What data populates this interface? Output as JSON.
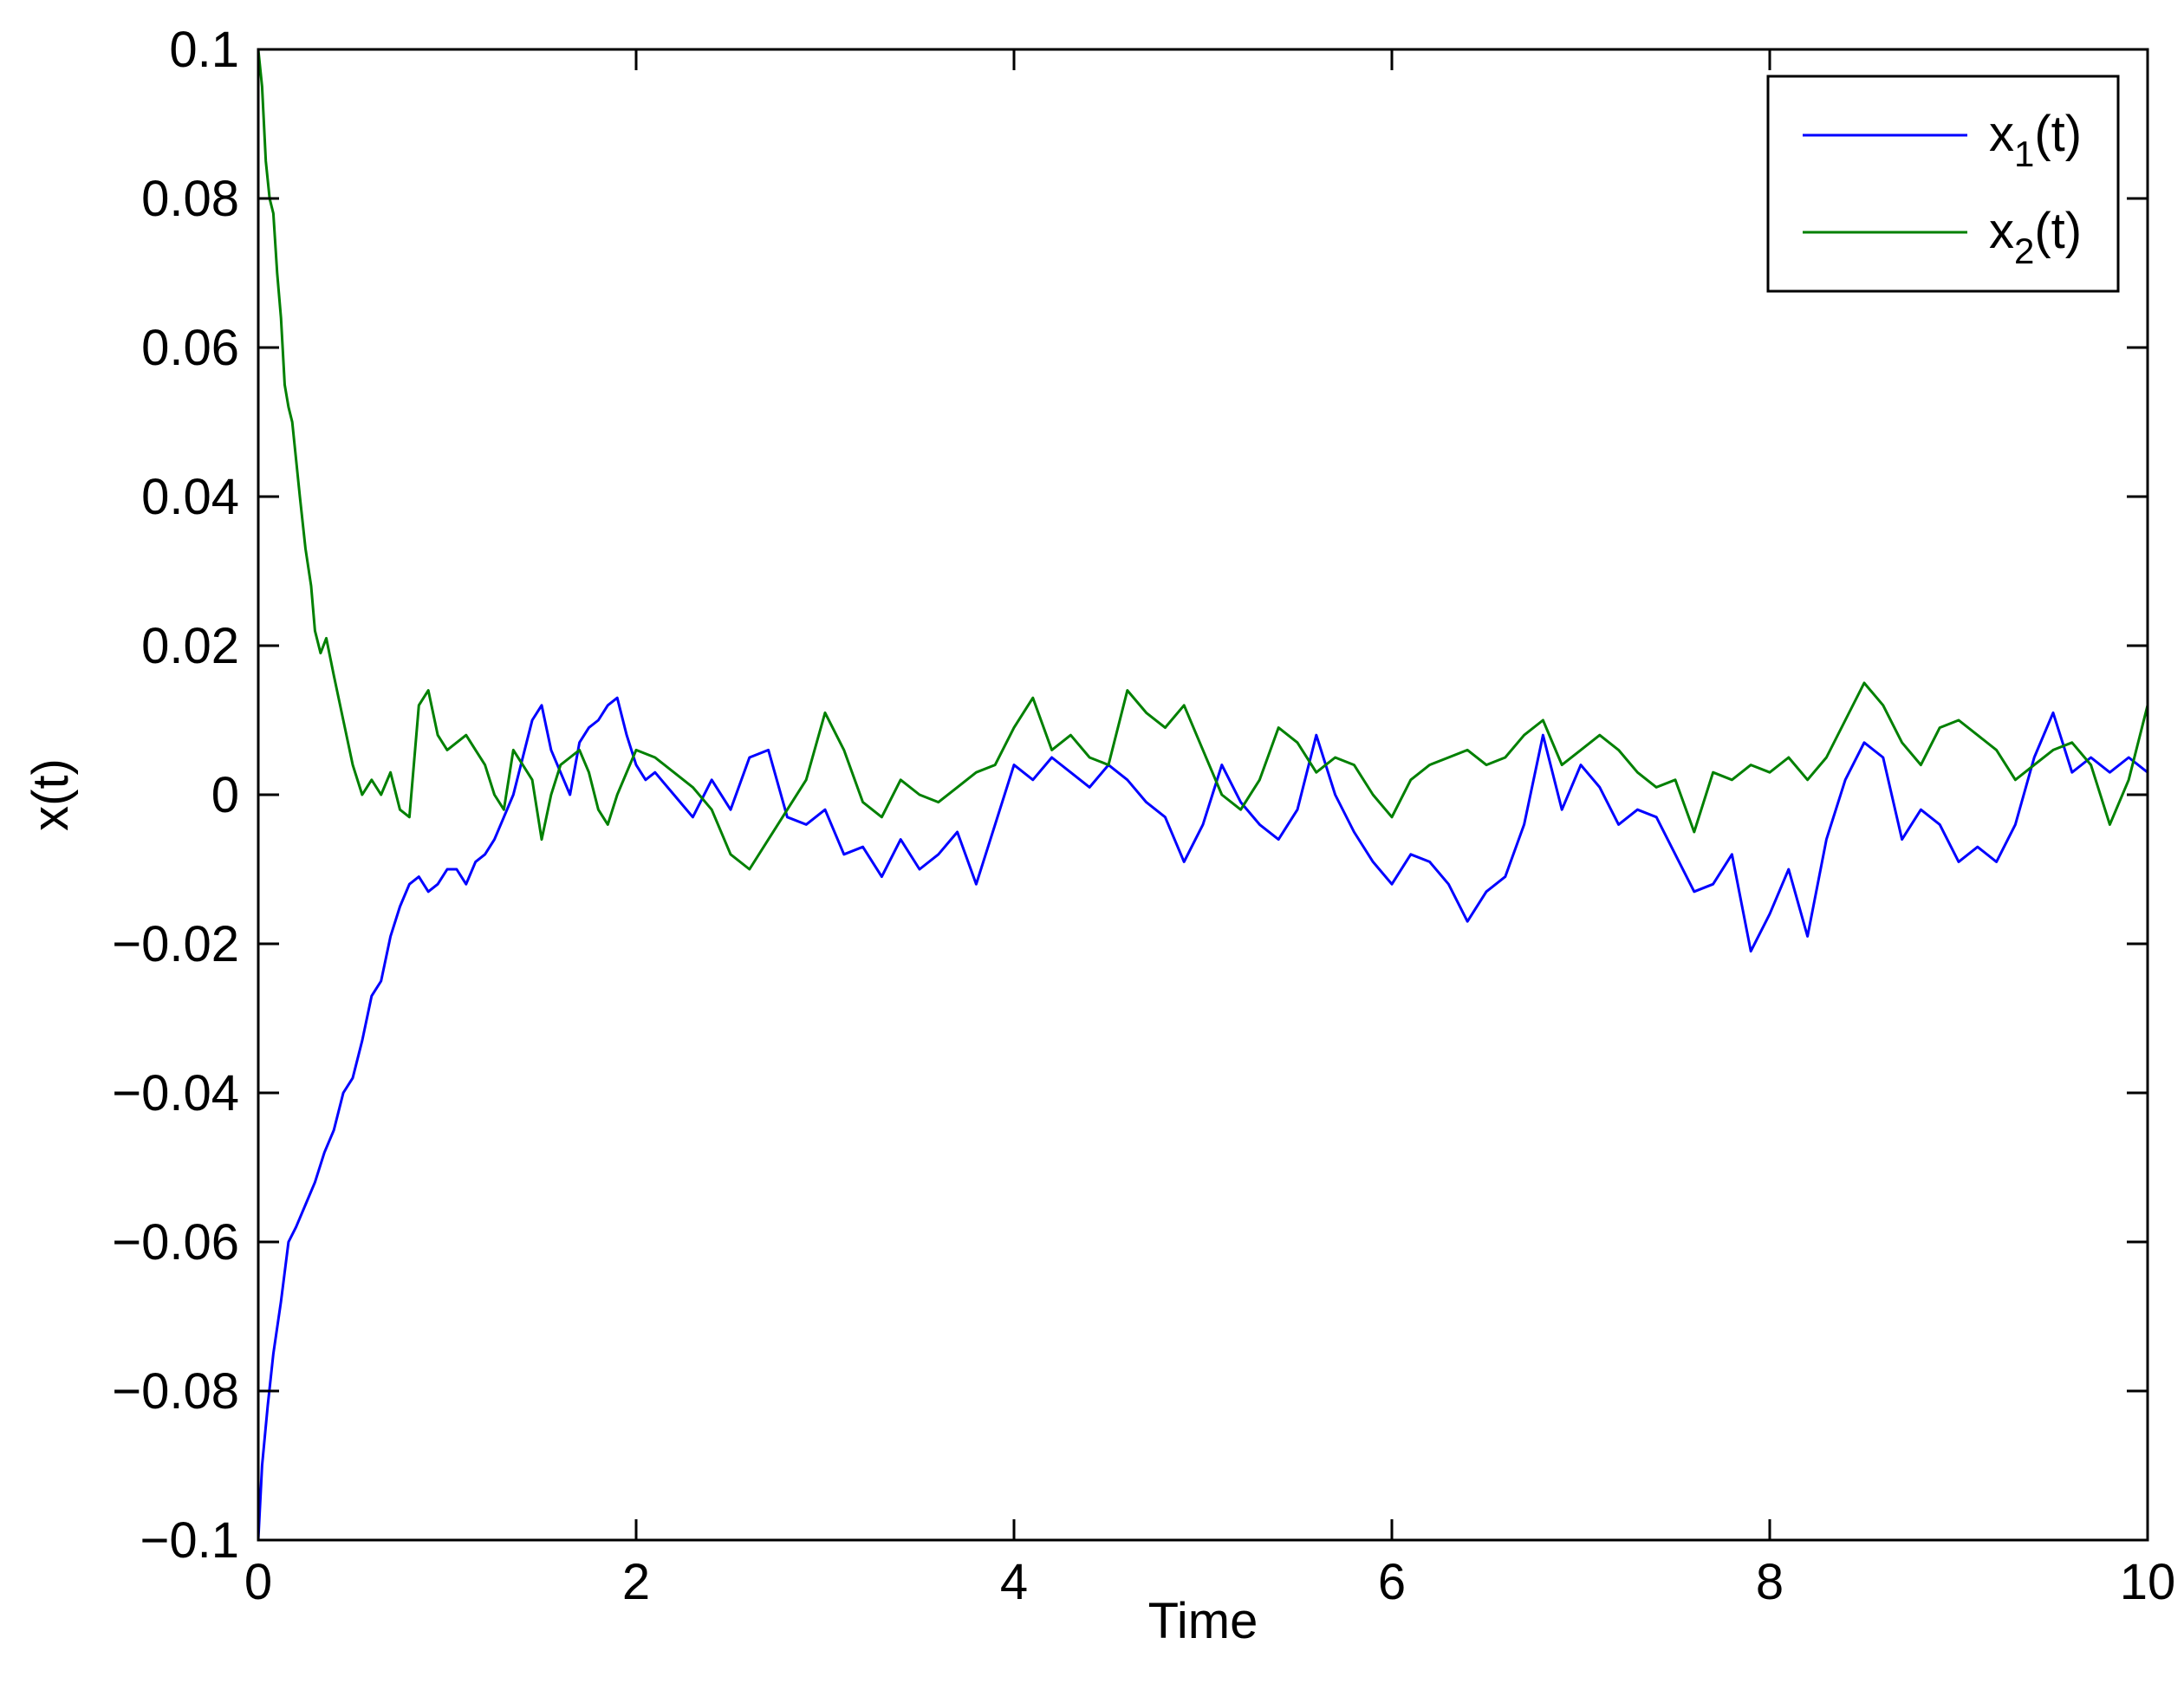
{
  "chart_data": {
    "type": "line",
    "xlabel": "Time",
    "ylabel": "x(t)",
    "xlim": [
      0,
      10
    ],
    "ylim": [
      -0.1,
      0.1
    ],
    "x_ticks": [
      0,
      2,
      4,
      6,
      8,
      10
    ],
    "x_tick_labels": [
      "0",
      "2",
      "4",
      "6",
      "8",
      "10"
    ],
    "y_ticks": [
      -0.1,
      -0.08,
      -0.06,
      -0.04,
      -0.02,
      0,
      0.02,
      0.04,
      0.06,
      0.08,
      0.1
    ],
    "y_tick_labels": [
      "−0.1",
      "−0.08",
      "−0.06",
      "−0.04",
      "−0.02",
      "0",
      "0.02",
      "0.04",
      "0.06",
      "0.08",
      "0.1"
    ],
    "grid": false,
    "legend_position": "top-right",
    "series": [
      {
        "name": "x1(t)",
        "legend_base": "x",
        "legend_sub": "1",
        "legend_suffix": "(t)",
        "color": "#0000ff",
        "points": [
          [
            0,
            -0.1
          ],
          [
            0.02,
            -0.09
          ],
          [
            0.05,
            -0.082
          ],
          [
            0.08,
            -0.075
          ],
          [
            0.12,
            -0.068
          ],
          [
            0.16,
            -0.06
          ],
          [
            0.2,
            -0.058
          ],
          [
            0.25,
            -0.055
          ],
          [
            0.3,
            -0.052
          ],
          [
            0.35,
            -0.048
          ],
          [
            0.4,
            -0.045
          ],
          [
            0.45,
            -0.04
          ],
          [
            0.5,
            -0.038
          ],
          [
            0.55,
            -0.033
          ],
          [
            0.6,
            -0.027
          ],
          [
            0.65,
            -0.025
          ],
          [
            0.7,
            -0.019
          ],
          [
            0.75,
            -0.015
          ],
          [
            0.8,
            -0.012
          ],
          [
            0.85,
            -0.011
          ],
          [
            0.9,
            -0.013
          ],
          [
            0.95,
            -0.012
          ],
          [
            1.0,
            -0.01
          ],
          [
            1.05,
            -0.01
          ],
          [
            1.1,
            -0.012
          ],
          [
            1.15,
            -0.009
          ],
          [
            1.2,
            -0.008
          ],
          [
            1.25,
            -0.006
          ],
          [
            1.3,
            -0.003
          ],
          [
            1.35,
            0.0
          ],
          [
            1.4,
            0.005
          ],
          [
            1.45,
            0.01
          ],
          [
            1.5,
            0.012
          ],
          [
            1.55,
            0.006
          ],
          [
            1.6,
            0.003
          ],
          [
            1.65,
            0.0
          ],
          [
            1.7,
            0.007
          ],
          [
            1.75,
            0.009
          ],
          [
            1.8,
            0.01
          ],
          [
            1.85,
            0.012
          ],
          [
            1.9,
            0.013
          ],
          [
            1.95,
            0.008
          ],
          [
            2.0,
            0.004
          ],
          [
            2.05,
            0.002
          ],
          [
            2.1,
            0.003
          ],
          [
            2.2,
            0.0
          ],
          [
            2.3,
            -0.003
          ],
          [
            2.4,
            0.002
          ],
          [
            2.5,
            -0.002
          ],
          [
            2.6,
            0.005
          ],
          [
            2.7,
            0.006
          ],
          [
            2.8,
            -0.003
          ],
          [
            2.9,
            -0.004
          ],
          [
            3.0,
            -0.002
          ],
          [
            3.1,
            -0.008
          ],
          [
            3.2,
            -0.007
          ],
          [
            3.3,
            -0.011
          ],
          [
            3.4,
            -0.006
          ],
          [
            3.5,
            -0.01
          ],
          [
            3.6,
            -0.008
          ],
          [
            3.7,
            -0.005
          ],
          [
            3.8,
            -0.012
          ],
          [
            3.9,
            -0.004
          ],
          [
            4.0,
            0.004
          ],
          [
            4.1,
            0.002
          ],
          [
            4.2,
            0.005
          ],
          [
            4.3,
            0.003
          ],
          [
            4.4,
            0.001
          ],
          [
            4.5,
            0.004
          ],
          [
            4.6,
            0.002
          ],
          [
            4.7,
            -0.001
          ],
          [
            4.8,
            -0.003
          ],
          [
            4.9,
            -0.009
          ],
          [
            5.0,
            -0.004
          ],
          [
            5.1,
            0.004
          ],
          [
            5.2,
            -0.001
          ],
          [
            5.3,
            -0.004
          ],
          [
            5.4,
            -0.006
          ],
          [
            5.5,
            -0.002
          ],
          [
            5.6,
            0.008
          ],
          [
            5.7,
            0.0
          ],
          [
            5.8,
            -0.005
          ],
          [
            5.9,
            -0.009
          ],
          [
            6.0,
            -0.012
          ],
          [
            6.1,
            -0.008
          ],
          [
            6.2,
            -0.009
          ],
          [
            6.3,
            -0.012
          ],
          [
            6.4,
            -0.017
          ],
          [
            6.5,
            -0.013
          ],
          [
            6.6,
            -0.011
          ],
          [
            6.7,
            -0.004
          ],
          [
            6.8,
            0.008
          ],
          [
            6.9,
            -0.002
          ],
          [
            7.0,
            0.004
          ],
          [
            7.1,
            0.001
          ],
          [
            7.2,
            -0.004
          ],
          [
            7.3,
            -0.002
          ],
          [
            7.4,
            -0.003
          ],
          [
            7.5,
            -0.008
          ],
          [
            7.6,
            -0.013
          ],
          [
            7.7,
            -0.012
          ],
          [
            7.8,
            -0.008
          ],
          [
            7.9,
            -0.021
          ],
          [
            8.0,
            -0.016
          ],
          [
            8.1,
            -0.01
          ],
          [
            8.2,
            -0.019
          ],
          [
            8.3,
            -0.006
          ],
          [
            8.4,
            0.002
          ],
          [
            8.5,
            0.007
          ],
          [
            8.6,
            0.005
          ],
          [
            8.7,
            -0.006
          ],
          [
            8.8,
            -0.002
          ],
          [
            8.9,
            -0.004
          ],
          [
            9.0,
            -0.009
          ],
          [
            9.1,
            -0.007
          ],
          [
            9.2,
            -0.009
          ],
          [
            9.3,
            -0.004
          ],
          [
            9.4,
            0.005
          ],
          [
            9.5,
            0.011
          ],
          [
            9.6,
            0.003
          ],
          [
            9.7,
            0.005
          ],
          [
            9.8,
            0.003
          ],
          [
            9.9,
            0.005
          ],
          [
            10.0,
            0.003
          ]
        ]
      },
      {
        "name": "x2(t)",
        "legend_base": "x",
        "legend_sub": "2",
        "legend_suffix": "(t)",
        "color": "#008000",
        "points": [
          [
            0,
            0.1
          ],
          [
            0.02,
            0.095
          ],
          [
            0.04,
            0.085
          ],
          [
            0.06,
            0.08
          ],
          [
            0.08,
            0.078
          ],
          [
            0.1,
            0.07
          ],
          [
            0.12,
            0.064
          ],
          [
            0.14,
            0.055
          ],
          [
            0.16,
            0.052
          ],
          [
            0.18,
            0.05
          ],
          [
            0.2,
            0.045
          ],
          [
            0.22,
            0.04
          ],
          [
            0.25,
            0.033
          ],
          [
            0.28,
            0.028
          ],
          [
            0.3,
            0.022
          ],
          [
            0.33,
            0.019
          ],
          [
            0.36,
            0.021
          ],
          [
            0.4,
            0.016
          ],
          [
            0.45,
            0.01
          ],
          [
            0.5,
            0.004
          ],
          [
            0.55,
            0.0
          ],
          [
            0.6,
            0.002
          ],
          [
            0.65,
            0.0
          ],
          [
            0.7,
            0.003
          ],
          [
            0.75,
            -0.002
          ],
          [
            0.8,
            -0.003
          ],
          [
            0.85,
            0.012
          ],
          [
            0.9,
            0.014
          ],
          [
            0.95,
            0.008
          ],
          [
            1.0,
            0.006
          ],
          [
            1.05,
            0.007
          ],
          [
            1.1,
            0.008
          ],
          [
            1.15,
            0.006
          ],
          [
            1.2,
            0.004
          ],
          [
            1.25,
            0.0
          ],
          [
            1.3,
            -0.002
          ],
          [
            1.35,
            0.006
          ],
          [
            1.4,
            0.004
          ],
          [
            1.45,
            0.002
          ],
          [
            1.5,
            -0.006
          ],
          [
            1.55,
            0.0
          ],
          [
            1.6,
            0.004
          ],
          [
            1.65,
            0.005
          ],
          [
            1.7,
            0.006
          ],
          [
            1.75,
            0.003
          ],
          [
            1.8,
            -0.002
          ],
          [
            1.85,
            -0.004
          ],
          [
            1.9,
            0.0
          ],
          [
            2.0,
            0.006
          ],
          [
            2.1,
            0.005
          ],
          [
            2.2,
            0.003
          ],
          [
            2.3,
            0.001
          ],
          [
            2.4,
            -0.002
          ],
          [
            2.5,
            -0.008
          ],
          [
            2.6,
            -0.01
          ],
          [
            2.7,
            -0.006
          ],
          [
            2.8,
            -0.002
          ],
          [
            2.9,
            0.002
          ],
          [
            3.0,
            0.011
          ],
          [
            3.1,
            0.006
          ],
          [
            3.2,
            -0.001
          ],
          [
            3.3,
            -0.003
          ],
          [
            3.4,
            0.002
          ],
          [
            3.5,
            0.0
          ],
          [
            3.6,
            -0.001
          ],
          [
            3.7,
            0.001
          ],
          [
            3.8,
            0.003
          ],
          [
            3.9,
            0.004
          ],
          [
            4.0,
            0.009
          ],
          [
            4.1,
            0.013
          ],
          [
            4.2,
            0.006
          ],
          [
            4.3,
            0.008
          ],
          [
            4.4,
            0.005
          ],
          [
            4.5,
            0.004
          ],
          [
            4.6,
            0.014
          ],
          [
            4.7,
            0.011
          ],
          [
            4.8,
            0.009
          ],
          [
            4.9,
            0.012
          ],
          [
            5.0,
            0.006
          ],
          [
            5.1,
            0.0
          ],
          [
            5.2,
            -0.002
          ],
          [
            5.3,
            0.002
          ],
          [
            5.4,
            0.009
          ],
          [
            5.5,
            0.007
          ],
          [
            5.6,
            0.003
          ],
          [
            5.7,
            0.005
          ],
          [
            5.8,
            0.004
          ],
          [
            5.9,
            0.0
          ],
          [
            6.0,
            -0.003
          ],
          [
            6.1,
            0.002
          ],
          [
            6.2,
            0.004
          ],
          [
            6.3,
            0.005
          ],
          [
            6.4,
            0.006
          ],
          [
            6.5,
            0.004
          ],
          [
            6.6,
            0.005
          ],
          [
            6.7,
            0.008
          ],
          [
            6.8,
            0.01
          ],
          [
            6.9,
            0.004
          ],
          [
            7.0,
            0.006
          ],
          [
            7.1,
            0.008
          ],
          [
            7.2,
            0.006
          ],
          [
            7.3,
            0.003
          ],
          [
            7.4,
            0.001
          ],
          [
            7.5,
            0.002
          ],
          [
            7.6,
            -0.005
          ],
          [
            7.7,
            0.003
          ],
          [
            7.8,
            0.002
          ],
          [
            7.9,
            0.004
          ],
          [
            8.0,
            0.003
          ],
          [
            8.1,
            0.005
          ],
          [
            8.2,
            0.002
          ],
          [
            8.3,
            0.005
          ],
          [
            8.4,
            0.01
          ],
          [
            8.5,
            0.015
          ],
          [
            8.6,
            0.012
          ],
          [
            8.7,
            0.007
          ],
          [
            8.8,
            0.004
          ],
          [
            8.9,
            0.009
          ],
          [
            9.0,
            0.01
          ],
          [
            9.1,
            0.008
          ],
          [
            9.2,
            0.006
          ],
          [
            9.3,
            0.002
          ],
          [
            9.4,
            0.004
          ],
          [
            9.5,
            0.006
          ],
          [
            9.6,
            0.007
          ],
          [
            9.7,
            0.004
          ],
          [
            9.8,
            -0.004
          ],
          [
            9.9,
            0.002
          ],
          [
            10.0,
            0.012
          ]
        ]
      }
    ]
  }
}
